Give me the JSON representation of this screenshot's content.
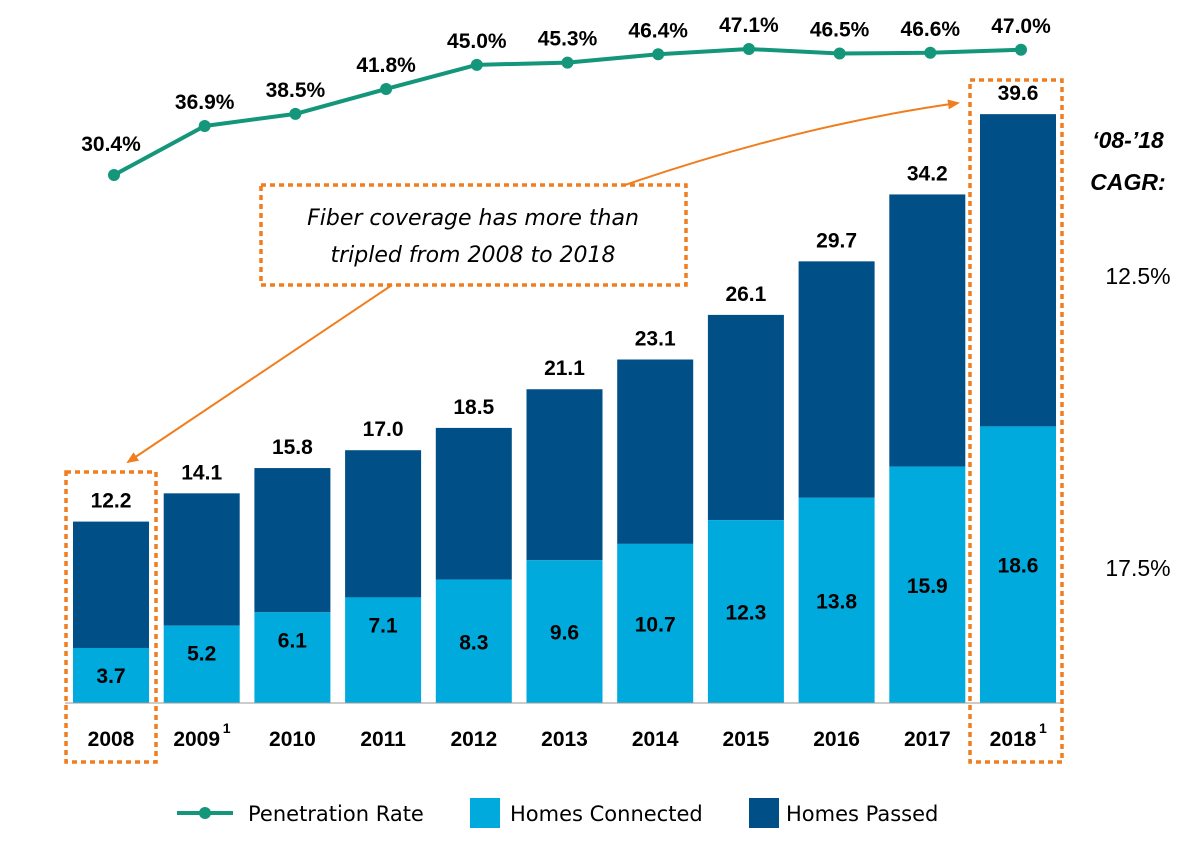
{
  "chart_data": {
    "type": "bar",
    "stacked": true,
    "categories": [
      "2008",
      "2009",
      "2010",
      "2011",
      "2012",
      "2013",
      "2014",
      "2015",
      "2016",
      "2017",
      "2018"
    ],
    "category_superscripts": [
      "",
      "1",
      "",
      "",
      "",
      "",
      "",
      "",
      "",
      "",
      "1"
    ],
    "series": [
      {
        "name": "Homes Connected",
        "color": "#00aadd",
        "values": [
          3.7,
          5.2,
          6.1,
          7.1,
          8.3,
          9.6,
          10.7,
          12.3,
          13.8,
          15.9,
          18.6
        ]
      },
      {
        "name": "Homes Passed",
        "color": "#004f87",
        "totals": [
          12.2,
          14.1,
          15.8,
          17.0,
          18.5,
          21.1,
          23.1,
          26.1,
          29.7,
          34.2,
          39.6
        ]
      }
    ],
    "line_series": {
      "name": "Penetration Rate",
      "color": "#13967a",
      "values": [
        30.4,
        36.9,
        38.5,
        41.8,
        45.0,
        45.3,
        46.4,
        47.1,
        46.5,
        46.6,
        47.0
      ],
      "unit": "%"
    },
    "cagr": {
      "title_line1": "‘08-’18",
      "title_line2": "CAGR:",
      "homes_passed": "12.5%",
      "homes_connected": "17.5%"
    },
    "callout": {
      "line1": "Fiber coverage has more than",
      "line2": "tripled from 2008 to 2018"
    },
    "highlighted_categories": [
      "2008",
      "2018"
    ],
    "highlight_color": "#f07d1e",
    "legend": {
      "position": "bottom"
    }
  }
}
